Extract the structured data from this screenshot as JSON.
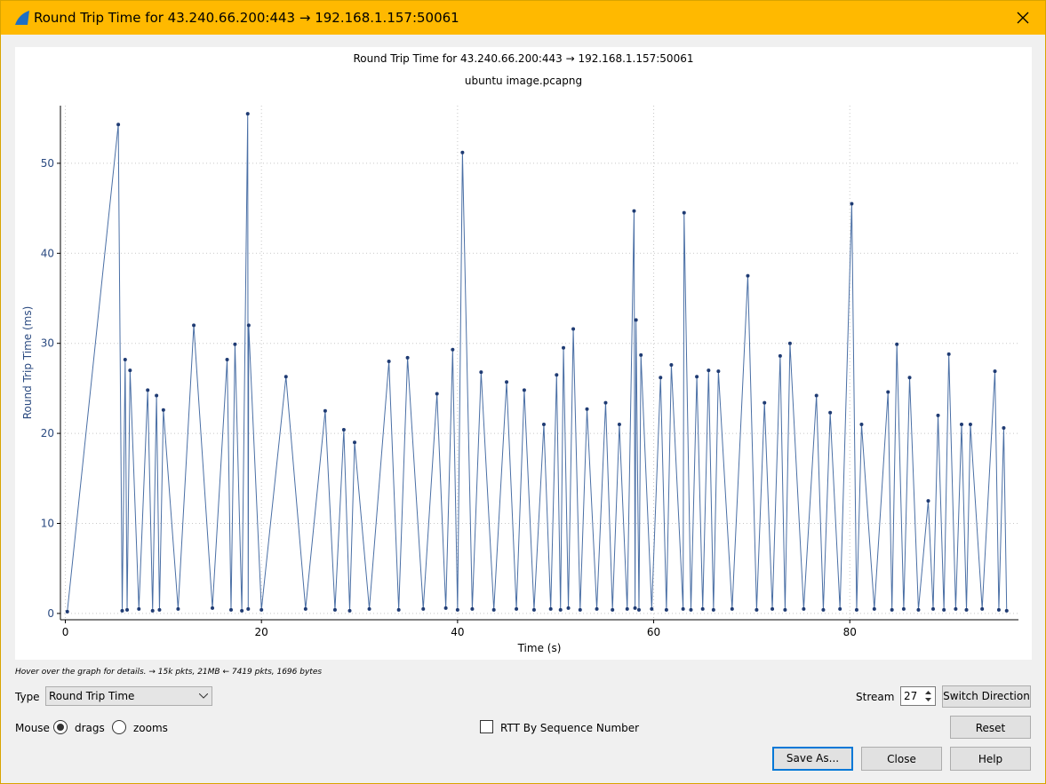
{
  "window_title": "Round Trip Time for 43.240.66.200:443 → 192.168.1.157:50061",
  "chart_data": {
    "type": "line",
    "title": "Round Trip Time for 43.240.66.200:443 → 192.168.1.157:50061",
    "subtitle": "ubuntu image.pcapng",
    "x_label": "Time (s)",
    "y_label": "Round Trip Time (ms)",
    "x": [
      0.2,
      5.4,
      5.8,
      6.1,
      6.3,
      6.6,
      7.5,
      8.4,
      8.9,
      9.3,
      9.6,
      10,
      11.5,
      13.1,
      15,
      16.5,
      16.9,
      17.3,
      18,
      18.6,
      18.65,
      18.7,
      20,
      22.5,
      24.5,
      26.5,
      27.5,
      28.4,
      29,
      29.5,
      31,
      33,
      34,
      34.9,
      36.5,
      37.9,
      38.8,
      39.5,
      40,
      40.5,
      41.5,
      42.4,
      43.7,
      45,
      46,
      46.8,
      47.8,
      48.8,
      49.5,
      50.1,
      50.5,
      50.8,
      51.3,
      51.8,
      52.5,
      53.2,
      54.2,
      55.1,
      55.8,
      56.5,
      57.3,
      58,
      58.1,
      58.2,
      58.5,
      58.7,
      59.8,
      60.7,
      61.3,
      61.8,
      63,
      63.1,
      63.8,
      64.4,
      65,
      65.6,
      66.1,
      66.6,
      68,
      69.6,
      70.5,
      71.3,
      72.1,
      72.9,
      73.4,
      73.9,
      75.3,
      76.6,
      77.3,
      78,
      79,
      80.2,
      80.7,
      81.2,
      82.5,
      83.9,
      84.3,
      84.8,
      85.5,
      86.1,
      87,
      88,
      88.5,
      89,
      89.6,
      90.1,
      90.8,
      91.4,
      91.9,
      92.3,
      93.5,
      94.8,
      95.2,
      95.7,
      96
    ],
    "series": [
      {
        "name": "Round Trip Time",
        "color": "#4a6fa5",
        "marker_color": "#1f3b73",
        "values": [
          0.2,
          54.3,
          0.3,
          28.2,
          0.4,
          27,
          0.5,
          24.8,
          0.3,
          24.2,
          0.4,
          22.6,
          0.5,
          32,
          0.6,
          28.2,
          0.4,
          29.9,
          0.3,
          55.5,
          0.5,
          32,
          0.4,
          26.3,
          0.5,
          22.5,
          0.4,
          20.4,
          0.3,
          19,
          0.5,
          28,
          0.4,
          28.4,
          0.5,
          24.4,
          0.6,
          29.3,
          0.4,
          51.2,
          0.5,
          26.8,
          0.4,
          25.7,
          0.5,
          24.8,
          0.4,
          21,
          0.5,
          26.5,
          0.4,
          29.5,
          0.6,
          31.6,
          0.4,
          22.7,
          0.5,
          23.4,
          0.4,
          21,
          0.5,
          44.7,
          0.6,
          32.6,
          0.4,
          28.7,
          0.5,
          26.2,
          0.4,
          27.6,
          0.5,
          44.5,
          0.4,
          26.3,
          0.5,
          27,
          0.4,
          26.9,
          0.5,
          37.5,
          0.4,
          23.4,
          0.5,
          28.6,
          0.4,
          30,
          0.5,
          24.2,
          0.4,
          22.3,
          0.5,
          45.5,
          0.4,
          21,
          0.5,
          24.6,
          0.4,
          29.9,
          0.5,
          26.2,
          0.4,
          12.5,
          0.5,
          22,
          0.4,
          28.8,
          0.5,
          21,
          0.4,
          21,
          0.5,
          26.9,
          0.4,
          20.6,
          0.3
        ]
      }
    ],
    "xlim": [
      -0.5,
      97.2
    ],
    "ylim": [
      -0.7,
      56.4
    ],
    "xticks": [
      0,
      20,
      40,
      60,
      80
    ],
    "yticks": [
      0,
      10,
      20,
      30,
      40,
      50
    ],
    "grid": true
  },
  "hint": "Hover over the graph for details. → 15k pkts, 21MB ← 7419 pkts, 1696 bytes",
  "controls": {
    "type_label": "Type",
    "type_value": "Round Trip Time",
    "stream_label": "Stream",
    "stream_value": "27",
    "switch_direction": "Switch Direction",
    "mouse_label": "Mouse",
    "drags": "drags",
    "zooms": "zooms",
    "rtt_by_seq": "RTT By Sequence Number",
    "reset": "Reset",
    "save_as": "Save As...",
    "close": "Close",
    "help": "Help"
  }
}
